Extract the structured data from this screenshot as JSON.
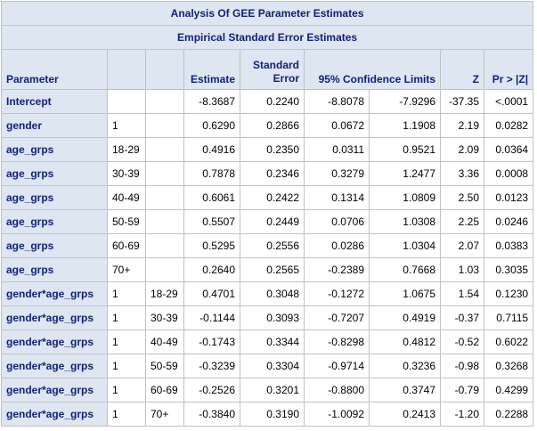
{
  "header": {
    "title": "Analysis Of GEE Parameter Estimates",
    "subtitle": "Empirical Standard Error Estimates"
  },
  "table": {
    "columns": {
      "parameter": "Parameter",
      "estimate": "Estimate",
      "stderr": "Standard Error",
      "limits": "95% Confidence Limits",
      "z": "Z",
      "p": "Pr > |Z|"
    },
    "rows": [
      {
        "parameter": "Intercept",
        "levels": [],
        "values": [
          "-8.3687",
          "0.2240",
          "-8.8078",
          "-7.9296",
          "-37.35",
          "<.0001"
        ]
      },
      {
        "parameter": "gender",
        "levels": [
          "1"
        ],
        "values": [
          "0.6290",
          "0.2866",
          "0.0672",
          "1.1908",
          "2.19",
          "0.0282"
        ]
      },
      {
        "parameter": "age_grps",
        "levels": [
          "18-29"
        ],
        "values": [
          "0.4916",
          "0.2350",
          "0.0311",
          "0.9521",
          "2.09",
          "0.0364"
        ]
      },
      {
        "parameter": "age_grps",
        "levels": [
          "30-39"
        ],
        "values": [
          "0.7878",
          "0.2346",
          "0.3279",
          "1.2477",
          "3.36",
          "0.0008"
        ]
      },
      {
        "parameter": "age_grps",
        "levels": [
          "40-49"
        ],
        "values": [
          "0.6061",
          "0.2422",
          "0.1314",
          "1.0809",
          "2.50",
          "0.0123"
        ]
      },
      {
        "parameter": "age_grps",
        "levels": [
          "50-59"
        ],
        "values": [
          "0.5507",
          "0.2449",
          "0.0706",
          "1.0308",
          "2.25",
          "0.0246"
        ]
      },
      {
        "parameter": "age_grps",
        "levels": [
          "60-69"
        ],
        "values": [
          "0.5295",
          "0.2556",
          "0.0286",
          "1.0304",
          "2.07",
          "0.0383"
        ]
      },
      {
        "parameter": "age_grps",
        "levels": [
          "70+"
        ],
        "values": [
          "0.2640",
          "0.2565",
          "-0.2389",
          "0.7668",
          "1.03",
          "0.3035"
        ]
      },
      {
        "parameter": "gender*age_grps",
        "levels": [
          "1",
          "18-29"
        ],
        "values": [
          "0.4701",
          "0.3048",
          "-0.1272",
          "1.0675",
          "1.54",
          "0.1230"
        ]
      },
      {
        "parameter": "gender*age_grps",
        "levels": [
          "1",
          "30-39"
        ],
        "values": [
          "-0.1144",
          "0.3093",
          "-0.7207",
          "0.4919",
          "-0.37",
          "0.7115"
        ]
      },
      {
        "parameter": "gender*age_grps",
        "levels": [
          "1",
          "40-49"
        ],
        "values": [
          "-0.1743",
          "0.3344",
          "-0.8298",
          "0.4812",
          "-0.52",
          "0.6022"
        ]
      },
      {
        "parameter": "gender*age_grps",
        "levels": [
          "1",
          "50-59"
        ],
        "values": [
          "-0.3239",
          "0.3304",
          "-0.9714",
          "0.3236",
          "-0.98",
          "0.3268"
        ]
      },
      {
        "parameter": "gender*age_grps",
        "levels": [
          "1",
          "60-69"
        ],
        "values": [
          "-0.2526",
          "0.3201",
          "-0.8800",
          "0.3747",
          "-0.79",
          "0.4299"
        ]
      },
      {
        "parameter": "gender*age_grps",
        "levels": [
          "1",
          "70+"
        ],
        "values": [
          "-0.3840",
          "0.3190",
          "-1.0092",
          "0.2413",
          "-1.20",
          "0.2288"
        ]
      }
    ]
  }
}
